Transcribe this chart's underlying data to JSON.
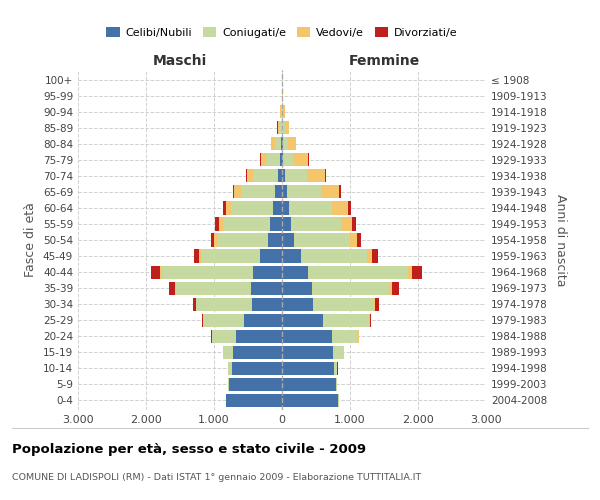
{
  "age_groups": [
    "0-4",
    "5-9",
    "10-14",
    "15-19",
    "20-24",
    "25-29",
    "30-34",
    "35-39",
    "40-44",
    "45-49",
    "50-54",
    "55-59",
    "60-64",
    "65-69",
    "70-74",
    "75-79",
    "80-84",
    "85-89",
    "90-94",
    "95-99",
    "100+"
  ],
  "birth_years": [
    "2004-2008",
    "1999-2003",
    "1994-1998",
    "1989-1993",
    "1984-1988",
    "1979-1983",
    "1974-1978",
    "1969-1973",
    "1964-1968",
    "1959-1963",
    "1954-1958",
    "1949-1953",
    "1944-1948",
    "1939-1943",
    "1934-1938",
    "1929-1933",
    "1924-1928",
    "1919-1923",
    "1914-1918",
    "1909-1913",
    "≤ 1908"
  ],
  "male": {
    "celibi": [
      820,
      780,
      740,
      720,
      680,
      560,
      440,
      460,
      420,
      320,
      200,
      170,
      130,
      100,
      60,
      30,
      10,
      5,
      2,
      0,
      0
    ],
    "coniugati": [
      5,
      15,
      50,
      150,
      350,
      600,
      820,
      1100,
      1350,
      870,
      760,
      700,
      620,
      500,
      360,
      200,
      100,
      40,
      15,
      5,
      2
    ],
    "vedovi": [
      0,
      0,
      0,
      1,
      2,
      3,
      5,
      10,
      20,
      30,
      40,
      60,
      80,
      100,
      100,
      80,
      50,
      20,
      8,
      2,
      0
    ],
    "divorziati": [
      0,
      0,
      1,
      3,
      8,
      20,
      50,
      90,
      130,
      80,
      50,
      55,
      40,
      20,
      15,
      8,
      5,
      2,
      0,
      0,
      0
    ]
  },
  "female": {
    "nubili": [
      830,
      790,
      760,
      750,
      730,
      600,
      450,
      440,
      380,
      280,
      180,
      130,
      100,
      70,
      40,
      20,
      8,
      5,
      2,
      0,
      0
    ],
    "coniugate": [
      6,
      18,
      55,
      160,
      390,
      680,
      900,
      1150,
      1480,
      970,
      820,
      740,
      640,
      500,
      330,
      160,
      80,
      35,
      15,
      5,
      2
    ],
    "vedove": [
      0,
      0,
      1,
      2,
      5,
      8,
      15,
      30,
      50,
      70,
      100,
      160,
      230,
      270,
      260,
      200,
      120,
      60,
      20,
      5,
      2
    ],
    "divorziate": [
      0,
      0,
      1,
      4,
      10,
      25,
      55,
      100,
      150,
      95,
      60,
      60,
      50,
      30,
      18,
      10,
      5,
      2,
      0,
      0,
      0
    ]
  },
  "colors": {
    "celibi_nubili": "#4472a8",
    "coniugati": "#c5d9a0",
    "vedovi": "#f5c56b",
    "divorziati": "#c0201c"
  },
  "xlim": 3000,
  "title": "Popolazione per età, sesso e stato civile - 2009",
  "subtitle": "COMUNE DI LADISPOLI (RM) - Dati ISTAT 1° gennaio 2009 - Elaborazione TUTTITALIA.IT",
  "ylabel_left": "Fasce di età",
  "ylabel_right": "Anni di nascita",
  "xlabel_left": "Maschi",
  "xlabel_right": "Femmine",
  "xtick_labels": [
    "3.000",
    "2.000",
    "1.000",
    "0",
    "1.000",
    "2.000",
    "3.000"
  ],
  "background_color": "#ffffff",
  "grid_color": "#cccccc"
}
